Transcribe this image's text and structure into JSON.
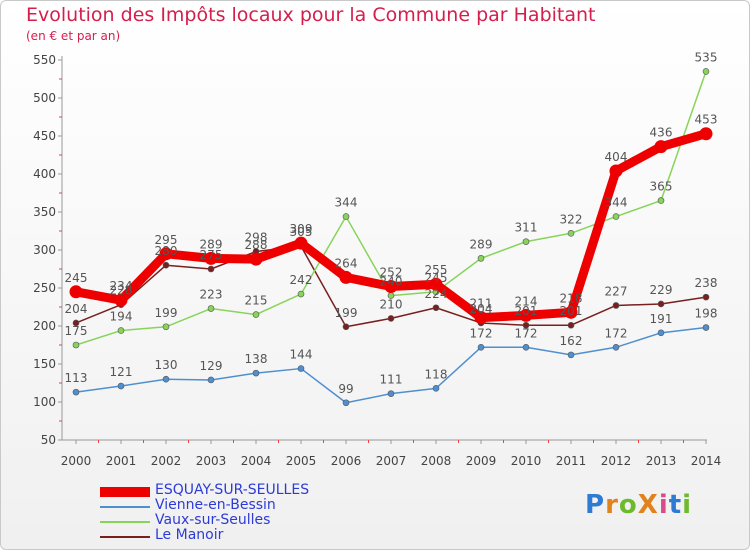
{
  "title": "Evolution des Impôts locaux pour la Commune par Habitant",
  "subtitle": "(en € et par an)",
  "logo": {
    "text": "ProXiti",
    "colors": [
      "#2e7bd6",
      "#e0831c",
      "#6dbb2c",
      "#e0831c",
      "#d94c8a",
      "#2e7bd6",
      "#6dbb2c"
    ]
  },
  "chart_data": {
    "type": "line",
    "x": [
      "2000",
      "2001",
      "2002",
      "2003",
      "2004",
      "2005",
      "2006",
      "2007",
      "2008",
      "2009",
      "2010",
      "2011",
      "2012",
      "2013",
      "2014"
    ],
    "ylim": [
      50,
      550
    ],
    "yticks": [
      50,
      100,
      150,
      200,
      250,
      300,
      350,
      400,
      450,
      500,
      550
    ],
    "grid": false,
    "legend_position": "bottom-left",
    "series": [
      {
        "name": "ESQUAY-SUR-SEULLES",
        "color": "#ee0000",
        "values": [
          245,
          234,
          295,
          289,
          288,
          309,
          264,
          252,
          255,
          211,
          214,
          218,
          404,
          436,
          453
        ]
      },
      {
        "name": "Vienne-en-Bessin",
        "color": "#4f8fcf",
        "values": [
          113,
          121,
          130,
          129,
          138,
          144,
          99,
          111,
          118,
          172,
          172,
          162,
          172,
          191,
          198
        ]
      },
      {
        "name": "Vaux-sur-Seulles",
        "color": "#88d45a",
        "values": [
          175,
          194,
          199,
          223,
          215,
          242,
          344,
          240,
          245,
          289,
          311,
          322,
          344,
          365,
          535
        ]
      },
      {
        "name": "Le Manoir",
        "color": "#7a1f1f",
        "values": [
          204,
          228,
          280,
          275,
          298,
          305,
          199,
          210,
          224,
          204,
          201,
          201,
          227,
          229,
          238
        ]
      }
    ]
  }
}
